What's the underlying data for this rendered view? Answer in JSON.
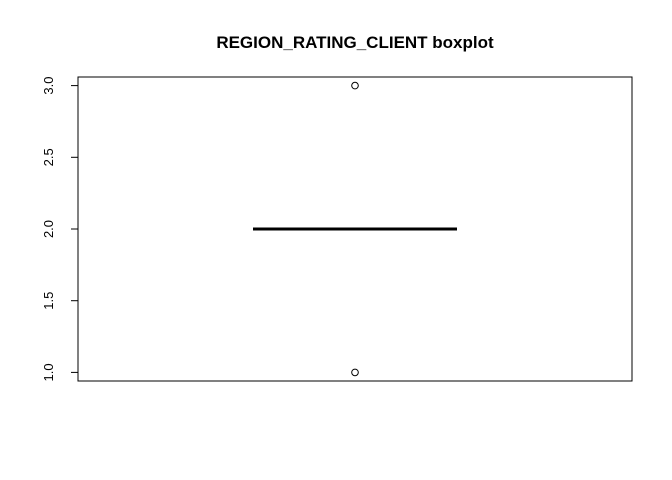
{
  "chart_data": {
    "type": "boxplot",
    "title": "REGION_RATING_CLIENT boxplot",
    "xlabel": "",
    "ylabel": "",
    "ylim": [
      0.94,
      3.06
    ],
    "yticks": [
      "1.0",
      "1.5",
      "2.0",
      "2.5",
      "3.0"
    ],
    "grid": false,
    "box": {
      "min": 2.0,
      "q1": 2.0,
      "median": 2.0,
      "q3": 2.0,
      "max": 2.0,
      "outliers": [
        3.0,
        1.0
      ]
    }
  }
}
